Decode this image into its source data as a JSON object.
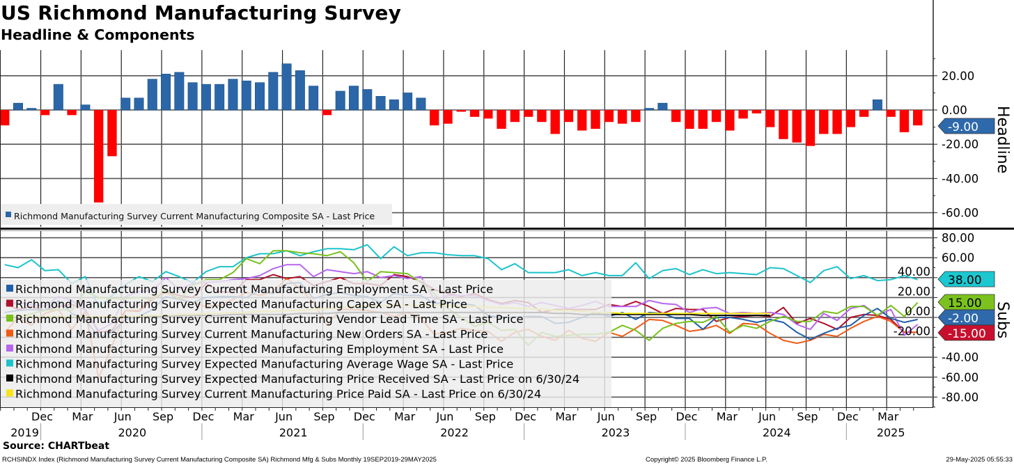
{
  "header": {
    "title": "US Richmond Manufacturing Survey",
    "subtitle": "Headline & Components"
  },
  "chart_data": [
    {
      "type": "bar",
      "panel_label": "Headline",
      "x_start": "Sep 2019",
      "x_end": "May 2025",
      "frequency": "monthly",
      "ylim": [
        -65,
        35
      ],
      "yticks": [
        "20.00",
        "0.00",
        "-20.00",
        "-40.00",
        "-60.00"
      ],
      "ytick_values": [
        20,
        0,
        -20,
        -40,
        -60
      ],
      "legend": "Richmond Manufacturing Survey Current Manufacturing Composite SA - Last Price",
      "positive_color": "#2b67a8",
      "negative_color": "#ff0000",
      "last_value_label": "-9.00",
      "last_value_color": "#2e69ab",
      "values": [
        -9,
        4,
        1,
        -3,
        15,
        -3,
        3,
        -54,
        -27,
        7,
        7,
        18,
        21,
        22,
        16,
        15,
        15,
        18,
        17,
        16,
        22,
        27,
        23,
        14,
        -3,
        11,
        14,
        12,
        8,
        6,
        10,
        7,
        -9,
        -8,
        -1,
        -4,
        -5,
        -11,
        -7,
        -4,
        -7,
        -14,
        -7,
        -12,
        -11,
        -7,
        -8,
        -7,
        1,
        4,
        -7,
        -11,
        -11,
        -7,
        -12,
        -5,
        -2,
        -10,
        -17,
        -19,
        -21,
        -14,
        -14,
        -10,
        -4,
        6,
        -4,
        -13,
        -9
      ]
    },
    {
      "type": "line",
      "panel_label": "Subs",
      "x_start": "Sep 2019",
      "frequency": "monthly",
      "ylim": [
        -90,
        87
      ],
      "yticks": [
        "80.00",
        "60.00",
        "40.00",
        "20.00",
        "0.00",
        "-20.00",
        "-40.00",
        "-60.00",
        "-80.00"
      ],
      "ytick_values": [
        80,
        60,
        40,
        20,
        0,
        -20,
        -40,
        -60,
        -80
      ],
      "series": [
        {
          "name": "Richmond Manufacturing Survey Current Manufacturing Employment SA - Last Price",
          "color": "#1f5fa8",
          "values": [
            5,
            7,
            8,
            7,
            17,
            4,
            -2,
            -20,
            -15,
            -2,
            1,
            8,
            21,
            18,
            15,
            20,
            21,
            21,
            20,
            27,
            24,
            34,
            35,
            19,
            23,
            25,
            22,
            21,
            15,
            24,
            22,
            22,
            14,
            15,
            14,
            12,
            2,
            0,
            0,
            1,
            1,
            -6,
            -5,
            0,
            5,
            1,
            5,
            -2,
            5,
            4,
            -1,
            -1,
            -12,
            0,
            0,
            -2,
            -5,
            -2,
            -5,
            -15,
            -22,
            -16,
            -11,
            -8,
            2,
            9,
            -1,
            -5,
            -2
          ]
        },
        {
          "name": "Richmond Manufacturing Survey Expected Manufacturing Capex SA - Last Price",
          "color": "#b0102a",
          "values": [
            14,
            8,
            11,
            7,
            11,
            13,
            8,
            -15,
            -13,
            7,
            6,
            18,
            26,
            22,
            20,
            34,
            26,
            25,
            38,
            38,
            43,
            39,
            41,
            32,
            36,
            40,
            34,
            34,
            32,
            43,
            41,
            36,
            28,
            24,
            21,
            24,
            18,
            14,
            17,
            15,
            5,
            8,
            8,
            8,
            8,
            13,
            11,
            16,
            11,
            4,
            9,
            8,
            8,
            -4,
            0,
            1,
            2,
            1,
            10,
            -6,
            -1,
            -6,
            -12,
            0,
            3,
            2,
            -2,
            -15,
            -15
          ]
        },
        {
          "name": "Richmond Manufacturing Survey Current Manufacturing Vendor Lead Time SA - Last Price",
          "color": "#78c01c",
          "values": [
            1,
            0,
            4,
            7,
            8,
            7,
            26,
            20,
            19,
            19,
            20,
            18,
            28,
            18,
            32,
            38,
            38,
            45,
            59,
            54,
            67,
            67,
            65,
            64,
            62,
            66,
            55,
            36,
            46,
            45,
            44,
            35,
            24,
            9,
            0,
            -9,
            -5,
            -13,
            -12,
            -28,
            -15,
            -19,
            -18,
            -17,
            -17,
            -15,
            -8,
            -13,
            -23,
            -11,
            -6,
            -4,
            -5,
            1,
            -15,
            -8,
            -11,
            -4,
            1,
            -4,
            -4,
            6,
            4,
            11,
            11,
            2,
            12,
            1,
            15
          ]
        },
        {
          "name": "Richmond Manufacturing Survey Current Manufacturing New Orders SA - Last Price",
          "color": "#f05a14",
          "values": [
            -15,
            0,
            -8,
            4,
            8,
            -12,
            6,
            -61,
            -29,
            7,
            7,
            20,
            25,
            19,
            15,
            11,
            12,
            18,
            25,
            22,
            26,
            39,
            29,
            15,
            -8,
            8,
            8,
            7,
            5,
            1,
            5,
            -1,
            -17,
            -15,
            -11,
            -13,
            -14,
            -24,
            -15,
            -12,
            -19,
            -23,
            -13,
            -21,
            -24,
            -15,
            -19,
            -11,
            -2,
            -3,
            -8,
            -14,
            -12,
            -8,
            -16,
            -6,
            -7,
            -16,
            -23,
            -26,
            -23,
            -17,
            -19,
            -11,
            -4,
            1,
            -4,
            -15,
            -15
          ]
        },
        {
          "name": "Richmond Manufacturing Survey Expected Manufacturing Employment SA - Last Price",
          "color": "#b865f0",
          "values": [
            12,
            15,
            13,
            11,
            21,
            17,
            7,
            -13,
            -6,
            21,
            26,
            27,
            40,
            28,
            34,
            35,
            36,
            38,
            39,
            42,
            49,
            53,
            53,
            41,
            48,
            46,
            44,
            46,
            40,
            42,
            39,
            41,
            18,
            22,
            22,
            22,
            17,
            13,
            15,
            11,
            15,
            12,
            9,
            12,
            16,
            11,
            11,
            11,
            17,
            14,
            13,
            5,
            9,
            10,
            4,
            5,
            4,
            5,
            3,
            -7,
            -12,
            4,
            -3,
            9,
            12,
            2,
            8,
            -18,
            -7
          ]
        },
        {
          "name": "Richmond Manufacturing Survey Expected Manufacturing Average Wage SA - Last Price",
          "color": "#1cc3cc",
          "values": [
            53,
            50,
            58,
            47,
            48,
            34,
            41,
            10,
            22,
            33,
            41,
            36,
            46,
            41,
            35,
            46,
            51,
            51,
            60,
            64,
            64,
            67,
            62,
            66,
            69,
            69,
            68,
            73,
            59,
            71,
            62,
            65,
            65,
            63,
            62,
            62,
            59,
            48,
            54,
            45,
            45,
            45,
            48,
            42,
            45,
            42,
            42,
            55,
            39,
            47,
            49,
            43,
            48,
            44,
            45,
            44,
            43,
            50,
            49,
            42,
            35,
            47,
            51,
            39,
            42,
            37,
            38,
            42,
            38
          ]
        },
        {
          "name": "Richmond Manufacturing Survey Expected Manufacturing Price Received SA - Last Price on 6/30/24",
          "color": "#000000",
          "values": [
            0,
            0,
            0,
            0,
            0,
            0,
            0,
            0,
            0,
            0,
            1,
            1,
            1,
            2,
            2,
            2,
            2,
            3,
            3,
            3,
            3,
            3,
            4,
            4,
            4,
            5,
            5,
            5,
            5,
            5,
            5,
            5,
            5,
            5,
            5,
            5,
            5,
            5,
            5,
            5,
            5,
            4,
            4,
            3,
            3,
            3,
            3,
            3,
            3,
            3,
            3,
            3,
            2,
            2,
            2,
            2,
            2,
            2
          ]
        },
        {
          "name": "Richmond Manufacturing Survey Current Manufacturing Price Paid SA - Last Price on 6/30/24",
          "color": "#f5e61a",
          "values": [
            1,
            1,
            1,
            1,
            1,
            1,
            1,
            1,
            1,
            1,
            1,
            2,
            2,
            3,
            3,
            4,
            4,
            5,
            5,
            6,
            6,
            7,
            7,
            8,
            9,
            10,
            11,
            11,
            12,
            12,
            12,
            12,
            12,
            12,
            11,
            11,
            10,
            10,
            9,
            9,
            8,
            7,
            7,
            6,
            5,
            5,
            4,
            4,
            4,
            4,
            4,
            4,
            4,
            4,
            4,
            4,
            4,
            4
          ]
        }
      ],
      "last_value_labels": [
        {
          "label": "38.00",
          "color": "#1cc7d0",
          "text_color": "#000000",
          "value": 38
        },
        {
          "label": "15.00",
          "color": "#7cc21e",
          "text_color": "#000000",
          "value": 15
        },
        {
          "label": "-2.00",
          "color": "#2e69ab",
          "text_color": "#ffffff",
          "value": -2
        },
        {
          "label": "-15.00",
          "color": "#c8102e",
          "text_color": "#ffffff",
          "value": -15
        }
      ]
    }
  ],
  "x_axis": {
    "month_labels": [
      "Dec",
      "Mar",
      "Jun",
      "Sep",
      "Dec",
      "Mar",
      "Jun",
      "Sep",
      "Dec",
      "Mar",
      "Jun",
      "Sep",
      "Dec",
      "Mar",
      "Jun",
      "Sep",
      "Dec",
      "Mar",
      "Jun",
      "Sep",
      "Dec",
      "Mar"
    ],
    "year_labels": [
      "2019",
      "2020",
      "2021",
      "2022",
      "2023",
      "2024",
      "2025"
    ]
  },
  "footer": {
    "source": "Source: CHARTbeat",
    "description": "RCHSINDX Index (Richmond Manufacturing Survey Current Manufacturing Composite SA) Richmond Mfg & Subs  Monthly 19SEP2019-29MAY2025",
    "copyright": "Copyright© 2025 Bloomberg Finance L.P.",
    "timestamp": "29-May-2025 05:55:33"
  }
}
